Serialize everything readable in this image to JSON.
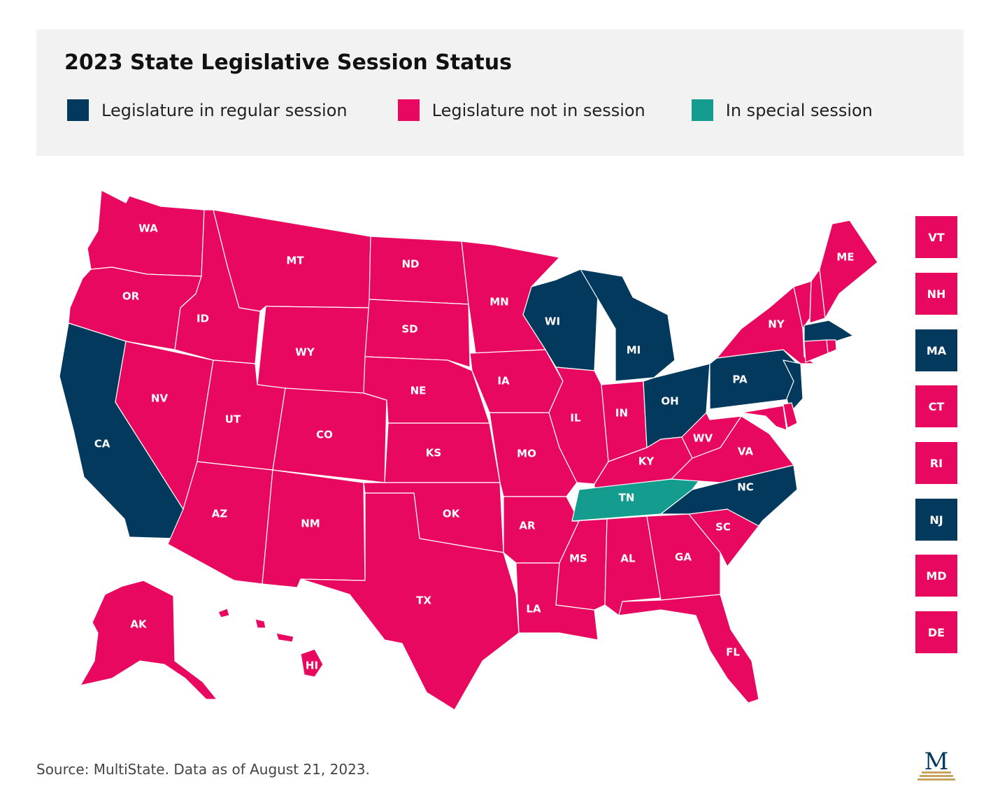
{
  "title": "2023 State Legislative Session Status",
  "colors": {
    "regular": "#04395e",
    "not_in_session": "#e8085f",
    "special": "#149c8e",
    "header_bg": "#f2f2f2",
    "logo_gold": "#c9a461"
  },
  "legend": [
    {
      "label": "Legislature in regular session",
      "status": "regular"
    },
    {
      "label": "Legislature not in session",
      "status": "not_in_session"
    },
    {
      "label": "In special session",
      "status": "special"
    }
  ],
  "states": {
    "WA": "not_in_session",
    "OR": "not_in_session",
    "CA": "regular",
    "NV": "not_in_session",
    "ID": "not_in_session",
    "MT": "not_in_session",
    "WY": "not_in_session",
    "UT": "not_in_session",
    "AZ": "not_in_session",
    "CO": "not_in_session",
    "NM": "not_in_session",
    "ND": "not_in_session",
    "SD": "not_in_session",
    "NE": "not_in_session",
    "KS": "not_in_session",
    "OK": "not_in_session",
    "TX": "not_in_session",
    "MN": "not_in_session",
    "IA": "not_in_session",
    "MO": "not_in_session",
    "AR": "not_in_session",
    "LA": "not_in_session",
    "WI": "regular",
    "IL": "not_in_session",
    "MI": "regular",
    "IN": "not_in_session",
    "OH": "regular",
    "KY": "not_in_session",
    "TN": "special",
    "MS": "not_in_session",
    "AL": "not_in_session",
    "GA": "not_in_session",
    "FL": "not_in_session",
    "SC": "not_in_session",
    "NC": "regular",
    "VA": "not_in_session",
    "WV": "not_in_session",
    "PA": "regular",
    "NY": "not_in_session",
    "ME": "not_in_session",
    "AK": "not_in_session",
    "HI": "not_in_session",
    "VT": "not_in_session",
    "NH": "not_in_session",
    "MA": "regular",
    "CT": "not_in_session",
    "RI": "not_in_session",
    "NJ": "regular",
    "MD": "not_in_session",
    "DE": "not_in_session"
  },
  "side_boxes": [
    "VT",
    "NH",
    "MA",
    "CT",
    "RI",
    "NJ",
    "MD",
    "DE"
  ],
  "source": "Source: MultiState. Data as of August 21, 2023.",
  "logo_letter": "M"
}
